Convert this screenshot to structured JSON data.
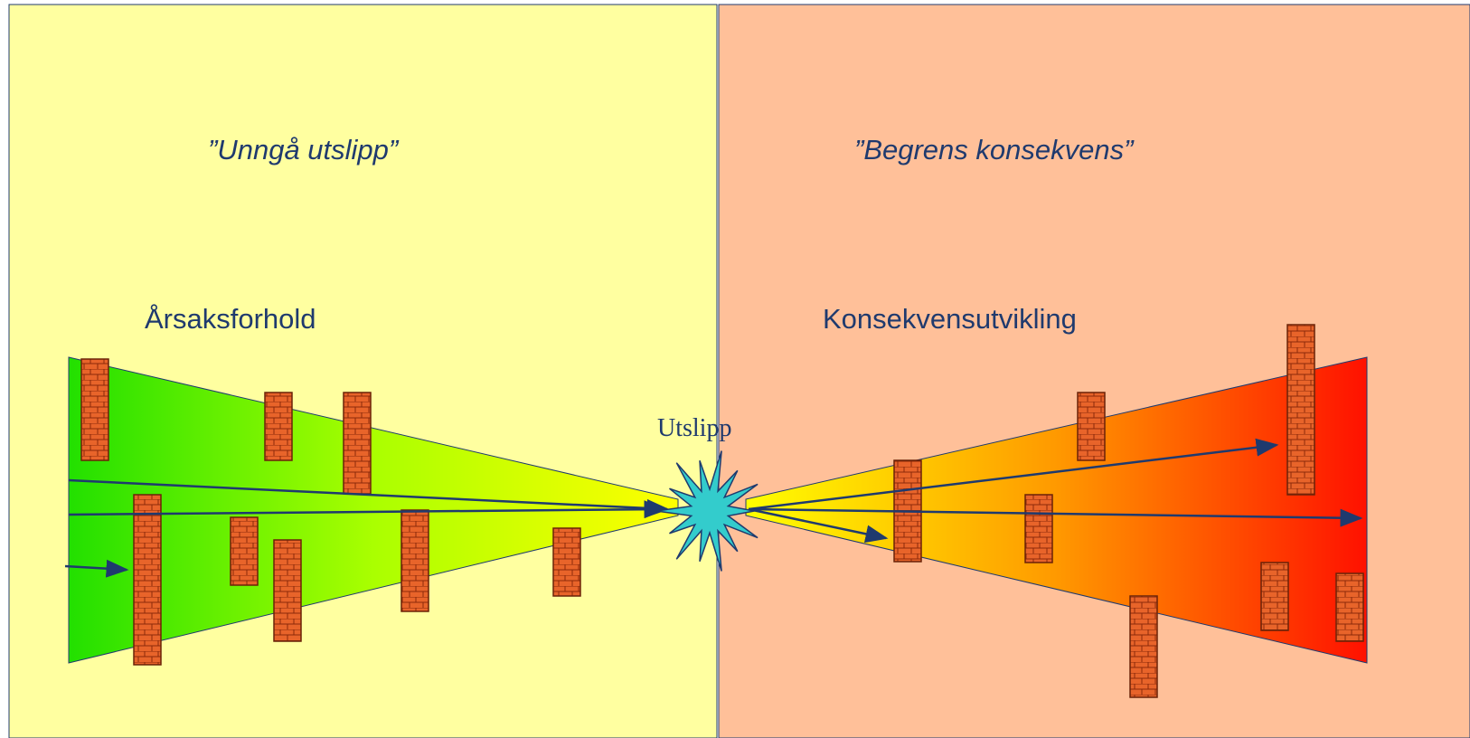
{
  "left": {
    "title": "”Unngå utslipp”",
    "label": "Årsaksforhold"
  },
  "right": {
    "title": "”Begrens konsekvens”",
    "label": "Konsekvensutvikling"
  },
  "center": {
    "label": "Utslipp"
  }
}
